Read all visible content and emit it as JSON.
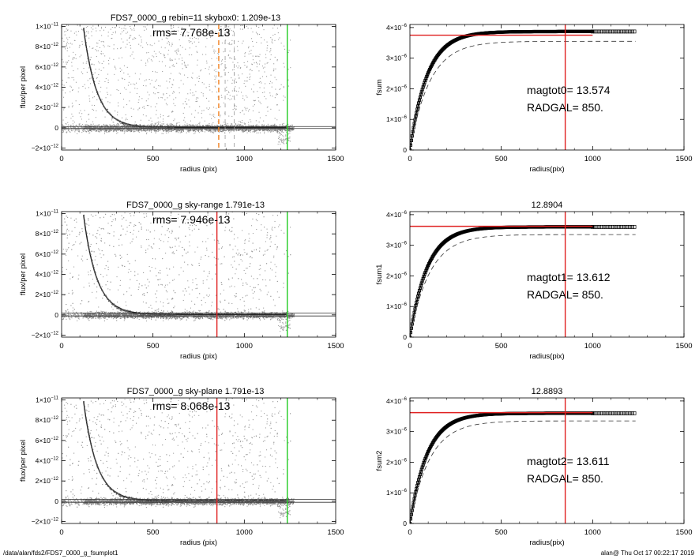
{
  "footer": {
    "path": "/data/alan/fds2/FDS7_0000_g_fsumplot1",
    "stamp": "alan@  Thu Oct 17 00:22:17 2019"
  },
  "colors": {
    "red": "#e02020",
    "green": "#22cc22",
    "orange": "#f08020",
    "scatter": "#a0a0a0",
    "axis": "#000000"
  },
  "chart_data": [
    {
      "type": "scatter",
      "panel": "profile",
      "title": "FDS7_0000_g rebin=11    skybox0:  1.209e-13",
      "annotation": "rms= 7.768e-13",
      "xlabel": "radius (pix)",
      "ylabel": "flux/per pixel",
      "xlim": [
        0,
        1500
      ],
      "ylim": [
        -2.2e-12,
        1.02e-11
      ],
      "xticks": [
        0,
        500,
        1000,
        1500
      ],
      "xtick_labels": [
        "0",
        "500",
        "1000",
        "1500"
      ],
      "yticks": [
        -2e-12,
        0,
        2e-12,
        4e-12,
        6e-12,
        8e-12,
        1e-11
      ],
      "ytick_labels": [
        {
          "m": "−2×10",
          "e": "−12"
        },
        {
          "m": "0",
          "e": ""
        },
        {
          "m": "2×10",
          "e": "−12"
        },
        {
          "m": "4×10",
          "e": "−12"
        },
        {
          "m": "6×10",
          "e": "−12"
        },
        {
          "m": "8×10",
          "e": "−12"
        },
        {
          "m": "1×10",
          "e": "−11"
        }
      ],
      "vlines": [
        {
          "x": 860,
          "style": "dashed",
          "color": "orange"
        },
        {
          "x": 895,
          "style": "dashed",
          "color": "gray"
        },
        {
          "x": 945,
          "style": "dashed",
          "color": "gray"
        },
        {
          "x": 1235,
          "style": "solid",
          "color": "green"
        }
      ],
      "sky_level": 1.209e-13
    },
    {
      "type": "line",
      "panel": "growth",
      "title": "",
      "annotation_lines": [
        "magtot0=  13.574",
        "RADGAL=    850."
      ],
      "xlabel": "radius(pix)",
      "ylabel": "fsum",
      "xlim": [
        0,
        1500
      ],
      "ylim": [
        0,
        4.1e-06
      ],
      "xticks": [
        0,
        500,
        1000,
        1500
      ],
      "xtick_labels": [
        "0",
        "500",
        "1000",
        "1500"
      ],
      "yticks": [
        0,
        1e-06,
        2e-06,
        3e-06,
        4e-06
      ],
      "ytick_labels": [
        {
          "m": "0",
          "e": ""
        },
        {
          "m": "1×10",
          "e": "−6"
        },
        {
          "m": "2×10",
          "e": "−6"
        },
        {
          "m": "3×10",
          "e": "−6"
        },
        {
          "m": "4×10",
          "e": "−6"
        }
      ],
      "vline_x": 850,
      "hline_y": 3.75e-06,
      "curve_end": 3.87e-06,
      "dashed_end": 3.55e-06,
      "squares_from": 1000,
      "squares_to": 1235
    },
    {
      "type": "scatter",
      "panel": "profile",
      "title": "FDS7_0000_g sky-range  1.791e-13",
      "annotation": "rms= 7.946e-13",
      "xlabel": "radius (pix)",
      "ylabel": "flux/per pixel",
      "xlim": [
        0,
        1500
      ],
      "ylim": [
        -2.2e-12,
        1.02e-11
      ],
      "xticks": [
        0,
        500,
        1000,
        1500
      ],
      "xtick_labels": [
        "0",
        "500",
        "1000",
        "1500"
      ],
      "yticks": [
        -2e-12,
        0,
        2e-12,
        4e-12,
        6e-12,
        8e-12,
        1e-11
      ],
      "ytick_labels": [
        {
          "m": "−2×10",
          "e": "−12"
        },
        {
          "m": "0",
          "e": ""
        },
        {
          "m": "2×10",
          "e": "−12"
        },
        {
          "m": "4×10",
          "e": "−12"
        },
        {
          "m": "6×10",
          "e": "−12"
        },
        {
          "m": "8×10",
          "e": "−12"
        },
        {
          "m": "1×10",
          "e": "−11"
        }
      ],
      "vlines": [
        {
          "x": 850,
          "style": "solid",
          "color": "red"
        },
        {
          "x": 1235,
          "style": "solid",
          "color": "green"
        }
      ],
      "sky_level": 1.791e-13
    },
    {
      "type": "line",
      "panel": "growth",
      "title": "12.8904",
      "annotation_lines": [
        "magtot1=  13.612",
        "RADGAL=    850."
      ],
      "xlabel": "radius(pix)",
      "ylabel": "fsum1",
      "xlim": [
        0,
        1500
      ],
      "ylim": [
        0,
        4.1e-06
      ],
      "xticks": [
        0,
        500,
        1000,
        1500
      ],
      "xtick_labels": [
        "0",
        "500",
        "1000",
        "1500"
      ],
      "yticks": [
        0,
        1e-06,
        2e-06,
        3e-06,
        4e-06
      ],
      "ytick_labels": [
        {
          "m": "0",
          "e": ""
        },
        {
          "m": "1×10",
          "e": "−6"
        },
        {
          "m": "2×10",
          "e": "−6"
        },
        {
          "m": "3×10",
          "e": "−6"
        },
        {
          "m": "4×10",
          "e": "−6"
        }
      ],
      "vline_x": 850,
      "hline_y": 3.62e-06,
      "curve_end": 3.6e-06,
      "dashed_end": 3.35e-06,
      "squares_from": 1000,
      "squares_to": 1235
    },
    {
      "type": "scatter",
      "panel": "profile",
      "title": "FDS7_0000_g sky-plane  1.791e-13",
      "annotation": "rms= 8.068e-13",
      "xlabel": "radius (pix)",
      "ylabel": "flux/per pixel",
      "xlim": [
        0,
        1500
      ],
      "ylim": [
        -2.2e-12,
        1.02e-11
      ],
      "xticks": [
        0,
        500,
        1000,
        1500
      ],
      "xtick_labels": [
        "0",
        "500",
        "1000",
        "1500"
      ],
      "yticks": [
        -2e-12,
        0,
        2e-12,
        4e-12,
        6e-12,
        8e-12,
        1e-11
      ],
      "ytick_labels": [
        {
          "m": "−2×10",
          "e": "−12"
        },
        {
          "m": "0",
          "e": ""
        },
        {
          "m": "2×10",
          "e": "−12"
        },
        {
          "m": "4×10",
          "e": "−12"
        },
        {
          "m": "6×10",
          "e": "−12"
        },
        {
          "m": "8×10",
          "e": "−12"
        },
        {
          "m": "1×10",
          "e": "−11"
        }
      ],
      "vlines": [
        {
          "x": 850,
          "style": "solid",
          "color": "red"
        },
        {
          "x": 1235,
          "style": "solid",
          "color": "green"
        }
      ],
      "sky_level": 1.791e-13
    },
    {
      "type": "line",
      "panel": "growth",
      "title": "12.8893",
      "annotation_lines": [
        "magtot2=  13.611",
        "RADGAL=    850."
      ],
      "xlabel": "radius(pix)",
      "ylabel": "fsum2",
      "xlim": [
        0,
        1500
      ],
      "ylim": [
        0,
        4.1e-06
      ],
      "xticks": [
        0,
        500,
        1000,
        1500
      ],
      "xtick_labels": [
        "0",
        "500",
        "1000",
        "1500"
      ],
      "yticks": [
        0,
        1e-06,
        2e-06,
        3e-06,
        4e-06
      ],
      "ytick_labels": [
        {
          "m": "0",
          "e": ""
        },
        {
          "m": "1×10",
          "e": "−6"
        },
        {
          "m": "2×10",
          "e": "−6"
        },
        {
          "m": "3×10",
          "e": "−6"
        },
        {
          "m": "4×10",
          "e": "−6"
        }
      ],
      "vline_x": 850,
      "hline_y": 3.62e-06,
      "curve_end": 3.6e-06,
      "dashed_end": 3.35e-06,
      "squares_from": 1000,
      "squares_to": 1235
    }
  ]
}
